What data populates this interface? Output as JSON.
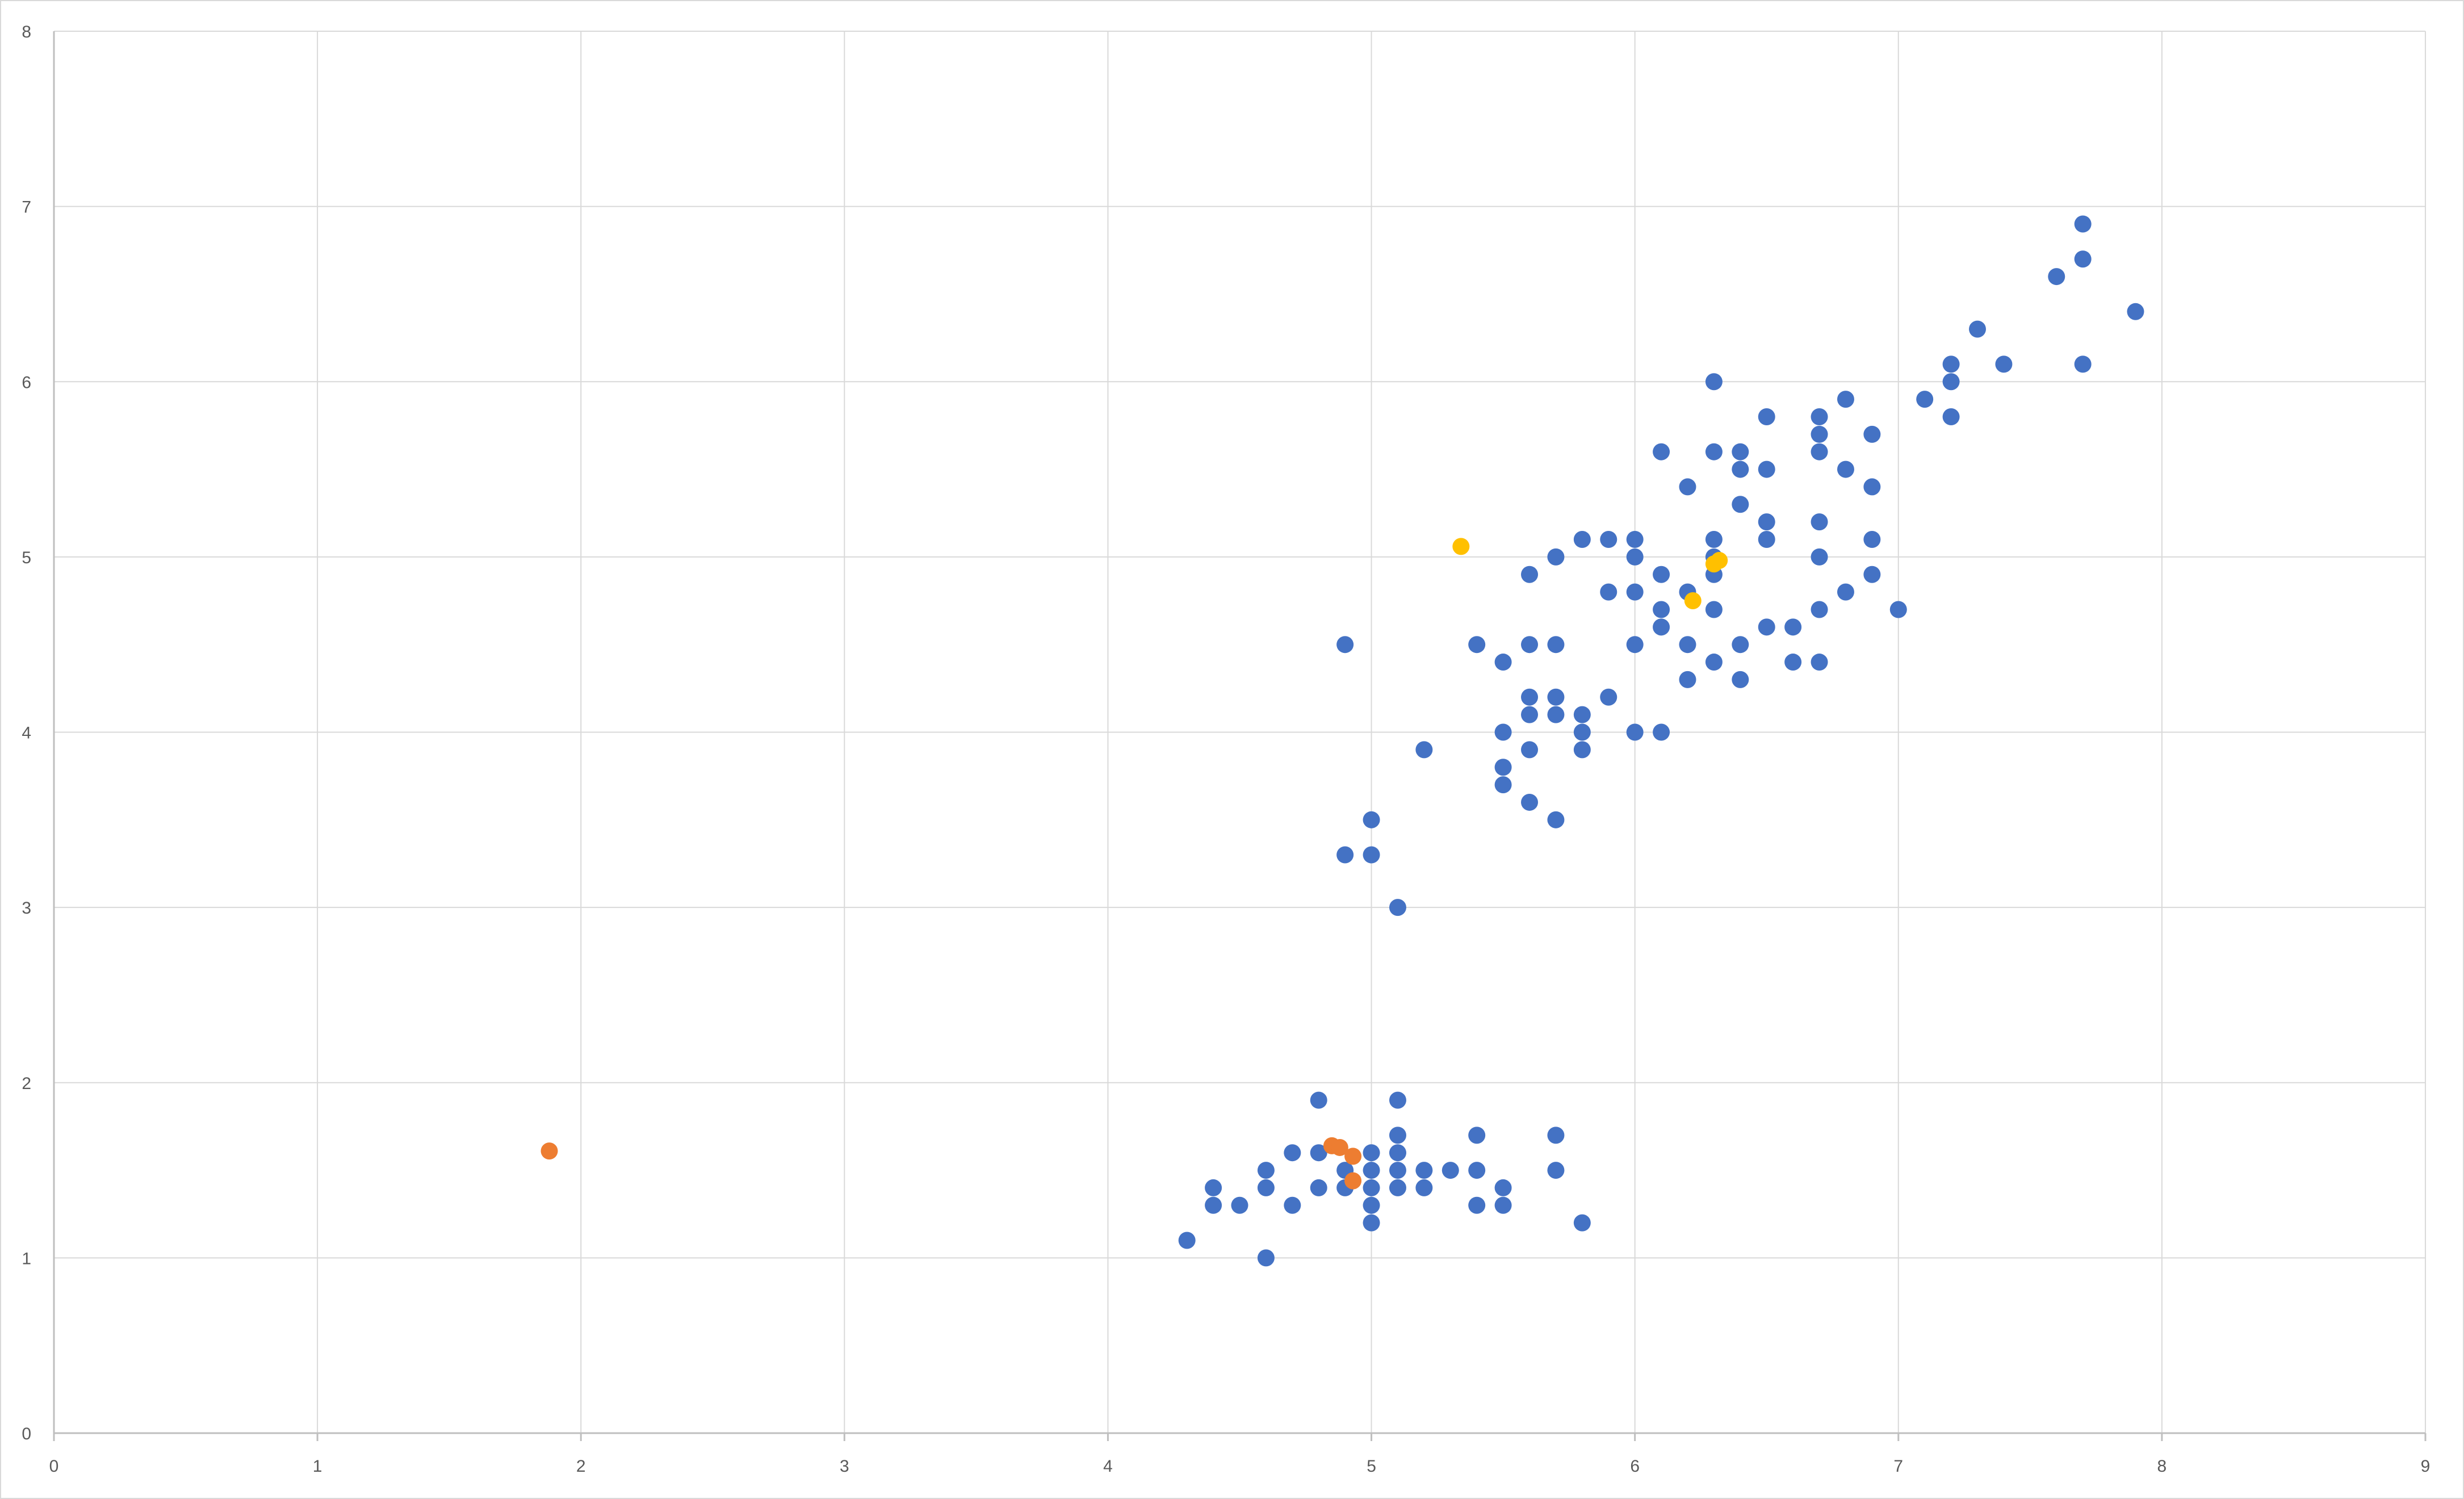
{
  "chart_data": {
    "type": "scatter",
    "title": "",
    "xlabel": "",
    "ylabel": "",
    "xlim": [
      0,
      9
    ],
    "ylim": [
      0,
      8
    ],
    "x_ticks": [
      0,
      1,
      2,
      3,
      4,
      5,
      6,
      7,
      8,
      9
    ],
    "y_ticks": [
      0,
      1,
      2,
      3,
      4,
      5,
      6,
      7,
      8
    ],
    "grid": true,
    "legend": "none",
    "series": [
      {
        "color": "#4472c4",
        "points": [
          [
            4.3,
            1.1
          ],
          [
            4.4,
            1.3
          ],
          [
            4.4,
            1.4
          ],
          [
            4.5,
            1.3
          ],
          [
            4.6,
            1.0
          ],
          [
            4.6,
            1.4
          ],
          [
            4.6,
            1.5
          ],
          [
            4.7,
            1.3
          ],
          [
            4.7,
            1.6
          ],
          [
            4.8,
            1.4
          ],
          [
            4.8,
            1.6
          ],
          [
            4.8,
            1.9
          ],
          [
            4.9,
            1.4
          ],
          [
            4.9,
            1.5
          ],
          [
            5.0,
            1.2
          ],
          [
            5.0,
            1.3
          ],
          [
            5.0,
            1.4
          ],
          [
            5.0,
            1.5
          ],
          [
            5.0,
            1.6
          ],
          [
            5.1,
            1.4
          ],
          [
            5.1,
            1.5
          ],
          [
            5.1,
            1.6
          ],
          [
            5.1,
            1.7
          ],
          [
            5.1,
            1.9
          ],
          [
            5.2,
            1.4
          ],
          [
            5.2,
            1.5
          ],
          [
            5.3,
            1.5
          ],
          [
            5.4,
            1.3
          ],
          [
            5.4,
            1.5
          ],
          [
            5.4,
            1.7
          ],
          [
            5.5,
            1.3
          ],
          [
            5.5,
            1.4
          ],
          [
            5.7,
            1.5
          ],
          [
            5.7,
            1.7
          ],
          [
            5.8,
            1.2
          ],
          [
            4.9,
            3.3
          ],
          [
            4.9,
            4.5
          ],
          [
            5.0,
            3.3
          ],
          [
            5.0,
            3.5
          ],
          [
            5.1,
            3.0
          ],
          [
            5.2,
            3.9
          ],
          [
            5.4,
            4.5
          ],
          [
            5.5,
            3.7
          ],
          [
            5.5,
            3.8
          ],
          [
            5.5,
            4.0
          ],
          [
            5.5,
            4.4
          ],
          [
            5.6,
            3.6
          ],
          [
            5.6,
            3.9
          ],
          [
            5.6,
            4.1
          ],
          [
            5.6,
            4.2
          ],
          [
            5.6,
            4.5
          ],
          [
            5.6,
            4.9
          ],
          [
            5.7,
            3.5
          ],
          [
            5.7,
            4.1
          ],
          [
            5.7,
            4.2
          ],
          [
            5.7,
            4.5
          ],
          [
            5.7,
            5.0
          ],
          [
            5.8,
            3.9
          ],
          [
            5.8,
            4.0
          ],
          [
            5.8,
            4.1
          ],
          [
            5.8,
            5.1
          ],
          [
            5.9,
            4.2
          ],
          [
            5.9,
            4.8
          ],
          [
            5.9,
            5.1
          ],
          [
            6.0,
            4.0
          ],
          [
            6.0,
            4.5
          ],
          [
            6.0,
            4.8
          ],
          [
            6.0,
            5.0
          ],
          [
            6.0,
            5.1
          ],
          [
            6.1,
            4.0
          ],
          [
            6.1,
            4.6
          ],
          [
            6.1,
            4.7
          ],
          [
            6.1,
            4.9
          ],
          [
            6.1,
            5.6
          ],
          [
            6.2,
            4.3
          ],
          [
            6.2,
            4.5
          ],
          [
            6.2,
            4.8
          ],
          [
            6.2,
            5.4
          ],
          [
            6.3,
            4.4
          ],
          [
            6.3,
            4.7
          ],
          [
            6.3,
            4.9
          ],
          [
            6.3,
            5.0
          ],
          [
            6.3,
            5.1
          ],
          [
            6.3,
            5.6
          ],
          [
            6.3,
            6.0
          ],
          [
            6.4,
            4.3
          ],
          [
            6.4,
            4.5
          ],
          [
            6.4,
            5.3
          ],
          [
            6.4,
            5.5
          ],
          [
            6.4,
            5.6
          ],
          [
            6.5,
            4.6
          ],
          [
            6.5,
            5.1
          ],
          [
            6.5,
            5.2
          ],
          [
            6.5,
            5.5
          ],
          [
            6.5,
            5.8
          ],
          [
            6.6,
            4.4
          ],
          [
            6.6,
            4.6
          ],
          [
            6.7,
            4.4
          ],
          [
            6.7,
            4.7
          ],
          [
            6.7,
            5.0
          ],
          [
            6.7,
            5.2
          ],
          [
            6.7,
            5.6
          ],
          [
            6.7,
            5.7
          ],
          [
            6.7,
            5.8
          ],
          [
            6.8,
            4.8
          ],
          [
            6.8,
            5.5
          ],
          [
            6.8,
            5.9
          ],
          [
            6.9,
            4.9
          ],
          [
            6.9,
            5.1
          ],
          [
            6.9,
            5.4
          ],
          [
            6.9,
            5.7
          ],
          [
            7.0,
            4.7
          ],
          [
            7.1,
            5.9
          ],
          [
            7.2,
            5.8
          ],
          [
            7.2,
            6.0
          ],
          [
            7.2,
            6.1
          ],
          [
            7.3,
            6.3
          ],
          [
            7.4,
            6.1
          ],
          [
            7.6,
            6.6
          ],
          [
            7.7,
            6.1
          ],
          [
            7.7,
            6.7
          ],
          [
            7.7,
            6.9
          ],
          [
            7.9,
            6.4
          ]
        ]
      },
      {
        "color": "#ed7d31",
        "points": [
          [
            1.88,
            1.61
          ],
          [
            4.85,
            1.64
          ],
          [
            4.88,
            1.63
          ],
          [
            4.93,
            1.58
          ],
          [
            4.93,
            1.44
          ]
        ]
      },
      {
        "color": "#ffc000",
        "points": [
          [
            5.34,
            5.06
          ],
          [
            6.22,
            4.75
          ],
          [
            6.3,
            4.96
          ],
          [
            6.32,
            4.98
          ]
        ]
      }
    ]
  }
}
